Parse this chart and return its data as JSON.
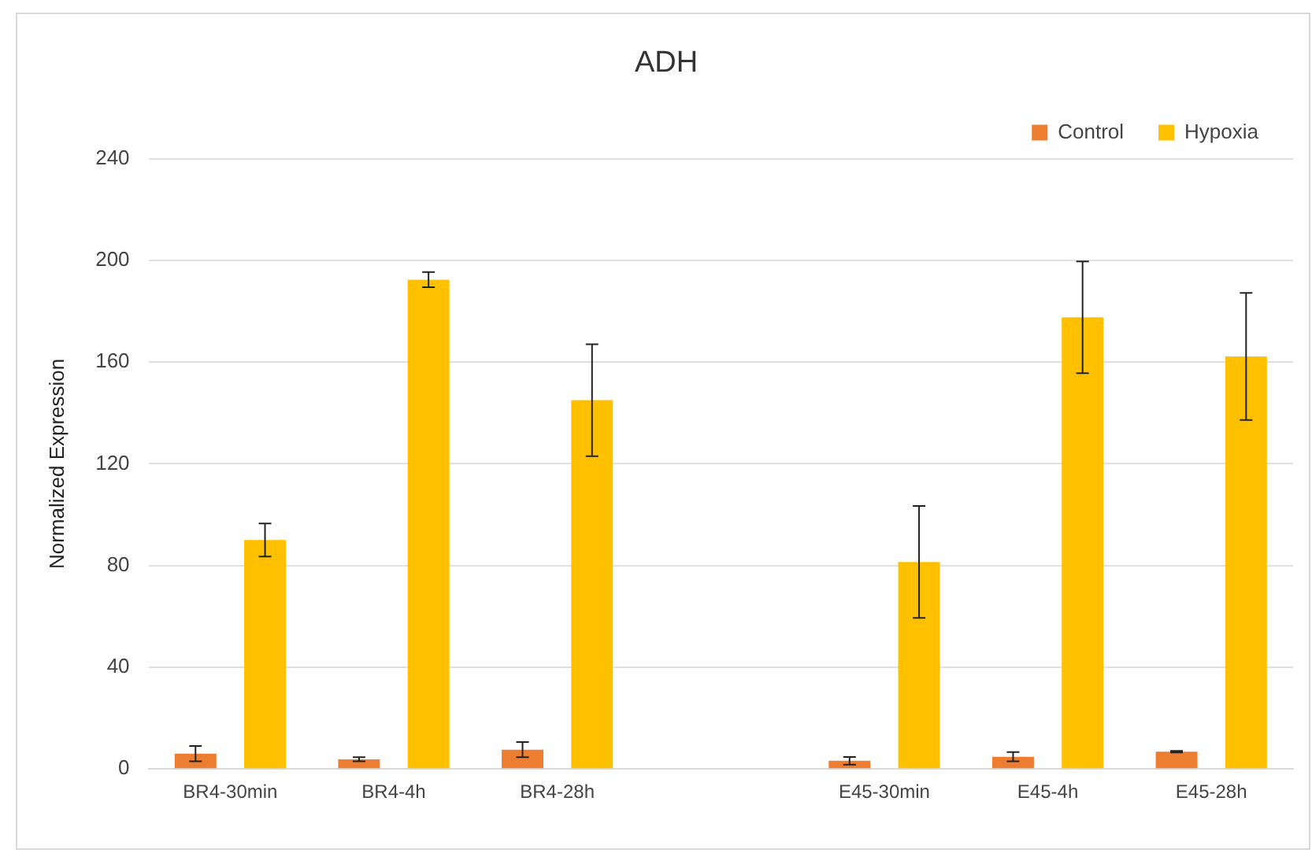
{
  "chart_data": {
    "type": "bar",
    "title": "ADH",
    "ylabel": "Normalized Expression",
    "categories": [
      "BR4-30min",
      "BR4-4h",
      "BR4-28h",
      null,
      "E45-30min",
      "E45-4h",
      "E45-28h"
    ],
    "series": [
      {
        "name": "Control",
        "color": "#ed7d31",
        "values": [
          6,
          3.8,
          7.6,
          null,
          3.2,
          4.8,
          6.8
        ],
        "errors": [
          3,
          0.8,
          3,
          null,
          1.5,
          1.8,
          0.3
        ]
      },
      {
        "name": "Hypoxia",
        "color": "#ffc000",
        "values": [
          90,
          192.4,
          145,
          null,
          81.4,
          177.6,
          162.2
        ],
        "errors": [
          6.5,
          3,
          22,
          null,
          22,
          22,
          25
        ]
      }
    ],
    "ylim": [
      0,
      240
    ],
    "yticks": [
      0,
      40,
      80,
      120,
      160,
      200,
      240
    ],
    "grid": "y",
    "legend": "top right"
  }
}
